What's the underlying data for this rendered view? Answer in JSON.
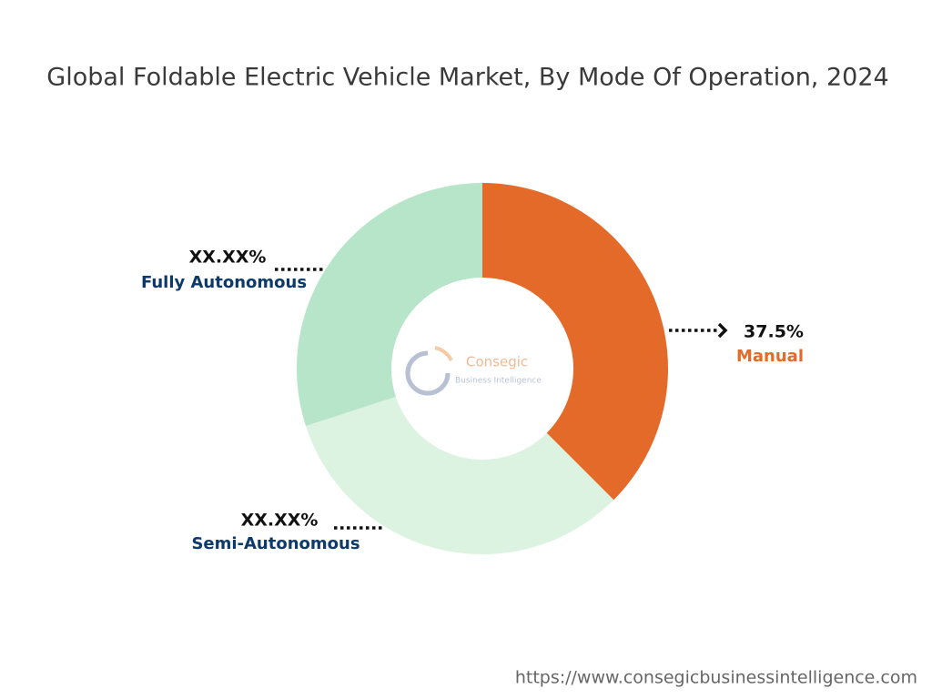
{
  "chart_data": {
    "type": "pie",
    "title": "Global Foldable Electric Vehicle Market, By Mode Of Operation, 2024",
    "categories": [
      "Manual",
      "Semi-Autonomous",
      "Fully Autonomous"
    ],
    "values": [
      37.5,
      32.5,
      30
    ],
    "value_labels": [
      "37.5%",
      "XX.XX%",
      "XX.XX%"
    ],
    "colors": [
      "#e36a28",
      "#dbf3e0",
      "#b6e5c9"
    ],
    "label_colors": [
      "#e36a28",
      "#0d3a6b",
      "#0d3a6b"
    ]
  },
  "logo": {
    "name": "Consegic",
    "tagline": "Business Intelligence"
  },
  "source_url": "https://www.consegicbusinessintelligence.com"
}
